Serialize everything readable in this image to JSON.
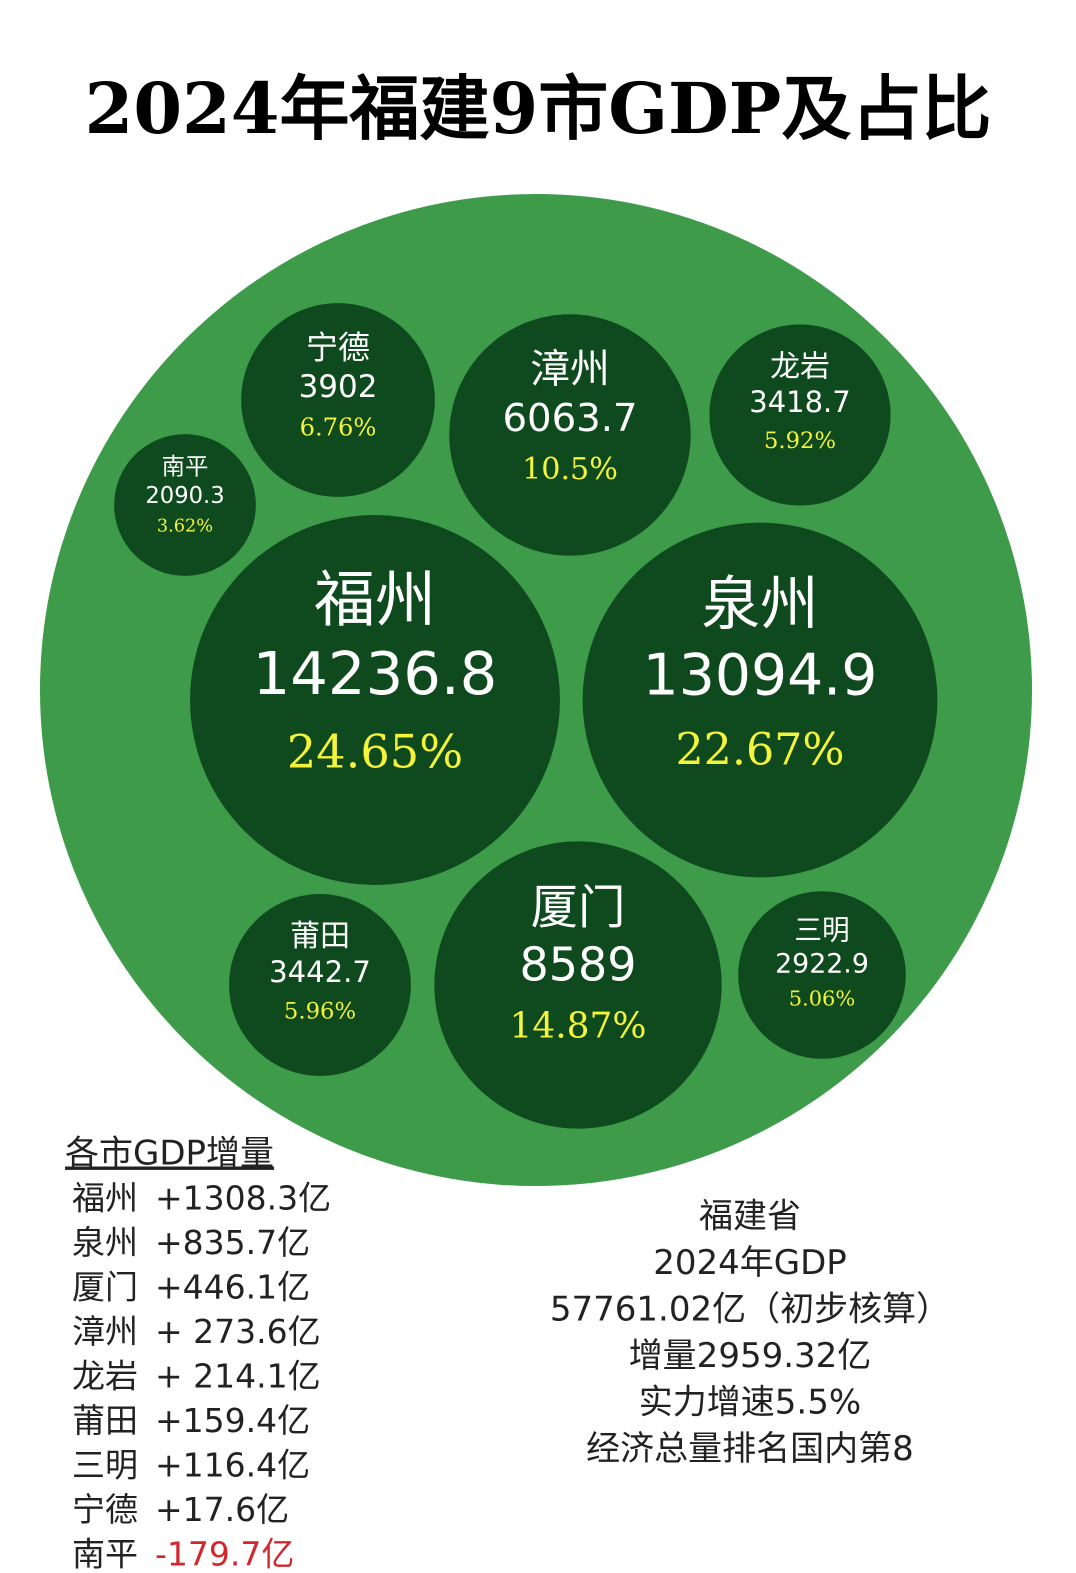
{
  "chart_data": {
    "type": "bubble-pack",
    "title": "2024年福建9市GDP及占比",
    "categories": [
      "福州",
      "泉州",
      "厦门",
      "漳州",
      "宁德",
      "龙岩",
      "南平",
      "莆田",
      "三明"
    ],
    "values": [
      14236.8,
      13094.9,
      8589,
      6063.7,
      3902,
      3418.7,
      2090.3,
      3442.7,
      2922.9
    ],
    "shares": [
      24.65,
      22.67,
      14.87,
      10.5,
      6.76,
      5.92,
      3.62,
      5.96,
      5.06
    ],
    "share_labels": [
      "24.65%",
      "22.67%",
      "14.87%",
      "10.5%",
      "6.76%",
      "5.92%",
      "3.62%",
      "5.96%",
      "5.06%"
    ],
    "outer_color": "#3d9b4a",
    "bubble_color": "#0f4a1e",
    "share_color": "#f4f43a",
    "increments": {
      "title": "各市GDP增量",
      "rows": [
        [
          "福州",
          "+1308.3亿"
        ],
        [
          "泉州",
          "+835.7亿"
        ],
        [
          "厦门",
          "+446.1亿"
        ],
        [
          "漳州",
          "+ 273.6亿"
        ],
        [
          "龙岩",
          "+ 214.1亿"
        ],
        [
          "莆田",
          "+159.4亿"
        ],
        [
          "三明",
          "+116.4亿"
        ],
        [
          "宁德",
          "+17.6亿"
        ],
        [
          "南平",
          "-179.7亿"
        ]
      ]
    },
    "summary": [
      "福建省",
      "2024年GDP",
      "57761.02亿（初步核算）",
      "增量2959.32亿",
      "实力增速5.5%",
      "经济总量排名国内第8"
    ]
  }
}
